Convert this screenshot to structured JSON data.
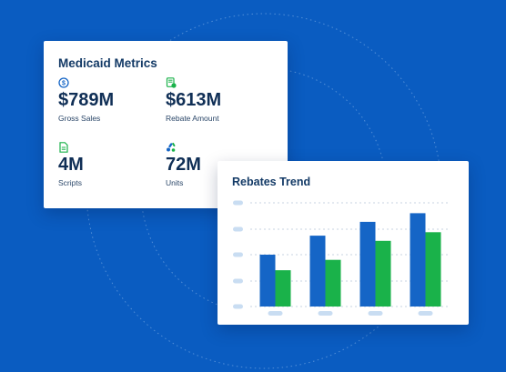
{
  "colors": {
    "background": "#0a5cc1",
    "accent_blue": "#1565c6",
    "accent_green": "#1ab24a",
    "title_text": "#133a66",
    "placeholder": "#c9ddf2"
  },
  "metrics_card": {
    "title": "Medicaid Metrics",
    "items": [
      {
        "icon": "dollar-circle-icon",
        "value": "$789M",
        "label": "Gross Sales"
      },
      {
        "icon": "receipt-icon",
        "value": "$613M",
        "label": "Rebate Amount"
      },
      {
        "icon": "document-icon",
        "value": "4M",
        "label": "Scripts"
      },
      {
        "icon": "pills-icon",
        "value": "72M",
        "label": "Units"
      }
    ]
  },
  "trend_card": {
    "title": "Rebates Trend"
  },
  "chart_data": {
    "type": "bar",
    "title": "Rebates Trend",
    "categories": [
      "",
      "",
      "",
      ""
    ],
    "series": [
      {
        "values": [
          3.0,
          4.1,
          4.9,
          5.4
        ],
        "color": "#1565c6"
      },
      {
        "values": [
          2.1,
          2.7,
          3.8,
          4.3
        ],
        "color": "#1ab24a"
      }
    ],
    "ylim": [
      0,
      6
    ],
    "grid": true,
    "legend": "none"
  }
}
